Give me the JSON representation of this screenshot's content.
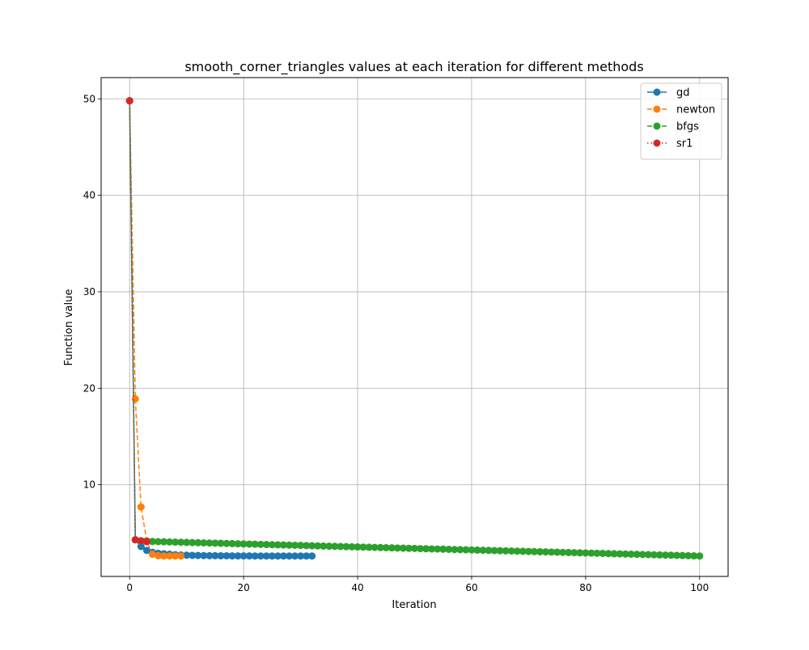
{
  "chart_data": {
    "type": "line",
    "title": "smooth_corner_triangles values at each iteration for different methods",
    "xlabel": "Iteration",
    "ylabel": "Function value",
    "xlim": [
      -5,
      105
    ],
    "ylim": [
      0.5,
      52.2
    ],
    "xticks": [
      0,
      20,
      40,
      60,
      80,
      100
    ],
    "yticks": [
      10,
      20,
      30,
      40,
      50
    ],
    "grid": true,
    "legend_position": "top-right",
    "series": [
      {
        "name": "gd",
        "color": "#1f77b4",
        "linestyle": "solid",
        "marker": "circle",
        "values": [
          49.8,
          4.3,
          3.6,
          3.2,
          3.0,
          2.9,
          2.85,
          2.8,
          2.75,
          2.72,
          2.7,
          2.68,
          2.67,
          2.66,
          2.65,
          2.65,
          2.64,
          2.64,
          2.63,
          2.63,
          2.63,
          2.63,
          2.62,
          2.62,
          2.62,
          2.62,
          2.62,
          2.62,
          2.62,
          2.62,
          2.62,
          2.62,
          2.62
        ]
      },
      {
        "name": "newton",
        "color": "#ff7f0e",
        "linestyle": "dashed",
        "marker": "circle",
        "values": [
          49.8,
          18.9,
          7.7,
          4.2,
          2.8,
          2.65,
          2.62,
          2.62,
          2.62,
          2.62
        ]
      },
      {
        "name": "bfgs",
        "color": "#2ca02c",
        "linestyle": "dashed",
        "marker": "circle",
        "start_value": 49.8,
        "second_value": 4.3,
        "decay": {
          "from_x": 2,
          "to_x": 100,
          "from_value": 4.15,
          "to_value": 2.62
        }
      },
      {
        "name": "sr1",
        "color": "#d62728",
        "linestyle": "dotted",
        "marker": "circle",
        "values": [
          49.8,
          4.3,
          4.2,
          4.1
        ]
      }
    ]
  }
}
